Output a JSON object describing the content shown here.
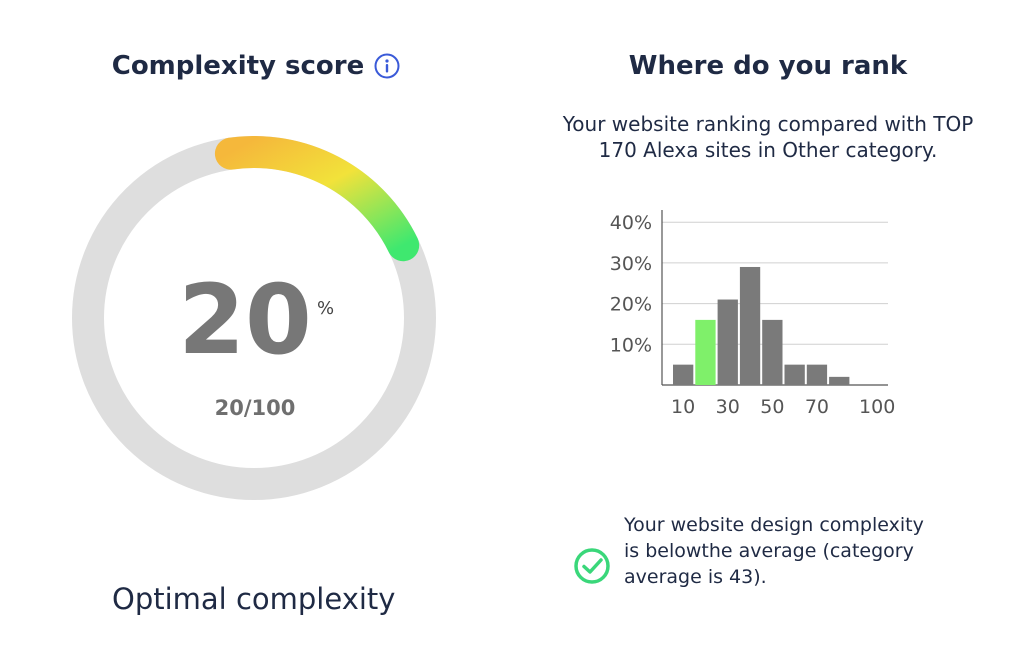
{
  "left": {
    "title": "Complexity score",
    "info_icon": "info-circle-icon",
    "score_percent_label": "20",
    "score_unit": "%",
    "score_ratio": "20/100",
    "score_fraction": 0.2,
    "status": "Optimal complexity"
  },
  "right": {
    "title": "Where do you rank",
    "description": "Your website ranking compared with TOP 170 Alexa sites in Other category.",
    "note": "Your website design complexity is belowthe average (category average is 43).",
    "check_icon": "check-circle-icon"
  },
  "colors": {
    "text_dark": "#1f2a44",
    "track": "#dedede",
    "bar_gray": "#7a7a7a",
    "bar_highlight": "#7ff06a",
    "check_green": "#3ad77a",
    "info_blue": "#3a5ad8",
    "gradient_start": "#f5b83b",
    "gradient_mid": "#f2e23a",
    "gradient_end": "#3fe86f"
  },
  "chart_data": {
    "type": "bar",
    "categories": [
      "10",
      "20",
      "30",
      "40",
      "50",
      "60",
      "70",
      "80",
      "90",
      "100"
    ],
    "values": [
      5,
      16,
      21,
      29,
      16,
      5,
      5,
      2,
      0,
      0
    ],
    "highlight_index": 1,
    "x_tick_labels": [
      "10",
      "30",
      "50",
      "70",
      "100"
    ],
    "y_tick_labels": [
      "10%",
      "20%",
      "30%",
      "40%"
    ],
    "ylim": [
      0,
      43
    ],
    "grid": true,
    "title": "",
    "xlabel": "",
    "ylabel": ""
  }
}
